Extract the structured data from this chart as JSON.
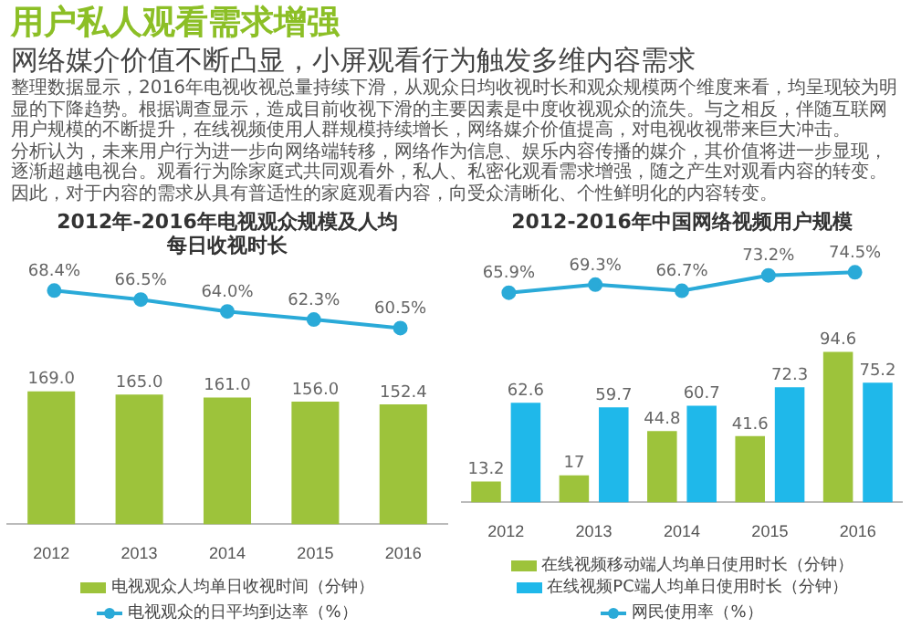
{
  "chart_data": [
    {
      "type": "other",
      "title": "用户私人观看需求增强",
      "subtitle": "网络媒介价值不断凸显，小屏观看行为触发多维内容需求",
      "annotations": [
        "整理数据显示，2016年电视收视总量持续下滑，从观众日均收视时长和观众规模两个维度来看，均呈现较为明显的下降趋势。根据调查显示，造成目前收视下滑的主要因素是中度收视观众的流失。与之相反，伴随互联网用户规模的不断提升，在线视频使用人群规模持续增长，网络媒介价值提高，对电视收视带来巨大冲击。",
        "分析认为，未来用户行为进一步向网络端转移，网络作为信息、娱乐内容传播的媒介，其价值将进一步显现，逐渐超越电视台。观看行为除家庭式共同观看外，私人、私密化观看需求增强，随之产生对观看内容的转变。因此，对于内容的需求从具有普适性的家庭观看内容，向受众清晰化、个性鲜明化的内容转变。"
      ]
    },
    {
      "type": "line",
      "title": "2012年-2016年电视观众规模及人均每日收视时长",
      "categories": [
        "2012",
        "2013",
        "2014",
        "2015",
        "2016"
      ],
      "tick_labels": false,
      "grid": false,
      "legend": "bottom",
      "marker": "circle",
      "series": [
        {
          "name": "电视观众的日平均到达率（%）",
          "color": "#2aaad8",
          "values": [
            68.4,
            66.5,
            64.0,
            62.3,
            60.5
          ],
          "value_labels": [
            "68.4%",
            "66.5%",
            "64.0%",
            "62.3%",
            "60.5%"
          ]
        }
      ]
    },
    {
      "type": "bar",
      "categories": [
        "2012",
        "2013",
        "2014",
        "2015",
        "2016"
      ],
      "tick_labels": "x",
      "grid": false,
      "legend": "bottom",
      "series": [
        {
          "name": "电视观众人均单日收视时间（分钟）",
          "color": "#9dc33b",
          "values": [
            169.0,
            165.0,
            161.0,
            156.0,
            152.4
          ],
          "value_labels": [
            "169.0",
            "165.0",
            "161.0",
            "156.0",
            "152.4"
          ]
        }
      ]
    },
    {
      "type": "line",
      "title": "2012-2016年中国网络视频用户规模",
      "categories": [
        "2012",
        "2013",
        "2014",
        "2015",
        "2016"
      ],
      "tick_labels": false,
      "grid": false,
      "legend": "bottom",
      "marker": "circle",
      "series": [
        {
          "name": "网民使用率（%）",
          "color": "#2aaad8",
          "values": [
            65.9,
            69.3,
            66.7,
            73.2,
            74.5
          ],
          "value_labels": [
            "65.9%",
            "69.3%",
            "66.7%",
            "73.2%",
            "74.5%"
          ]
        }
      ]
    },
    {
      "type": "bar",
      "categories": [
        "2012",
        "2013",
        "2014",
        "2015",
        "2016"
      ],
      "tick_labels": "x",
      "grid": false,
      "legend": "bottom",
      "series": [
        {
          "name": "在线视频移动端人均单日使用时长（分钟）",
          "color": "#9dc33b",
          "values": [
            13.2,
            17,
            44.8,
            41.6,
            94.6
          ],
          "value_labels": [
            "13.2",
            "17",
            "44.8",
            "41.6",
            "94.6"
          ]
        },
        {
          "name": "在线视频PC端人均单日使用时长（分钟）",
          "color": "#1fb8ea",
          "values": [
            62.6,
            59.7,
            60.7,
            72.3,
            75.2
          ],
          "value_labels": [
            "62.6",
            "59.7",
            "60.7",
            "72.3",
            "75.2"
          ]
        }
      ]
    }
  ]
}
